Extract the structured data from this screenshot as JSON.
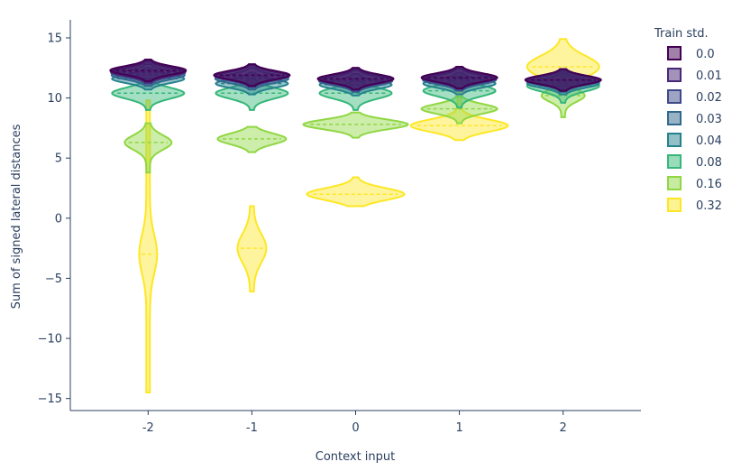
{
  "chart_data": {
    "type": "violin",
    "xlabel": "Context input",
    "ylabel": "Sum of signed lateral distances",
    "categories": [
      "-2",
      "-1",
      "0",
      "1",
      "2"
    ],
    "x_values": [
      -2,
      -1,
      0,
      1,
      2
    ],
    "xlim": [
      -2.75,
      2.75
    ],
    "ylim": [
      -16,
      16.5
    ],
    "y_ticks": [
      -15,
      -10,
      -5,
      0,
      5,
      10,
      15
    ],
    "y_tick_labels": [
      "−15",
      "−10",
      "−5",
      "0",
      "5",
      "10",
      "15"
    ],
    "grid": false,
    "legend": {
      "title": "Train std.",
      "placement": "right"
    },
    "series": [
      {
        "name": "0.0",
        "color": "#440154",
        "medians": [
          12.3,
          11.9,
          11.6,
          11.7,
          11.5
        ]
      },
      {
        "name": "0.01",
        "color": "#482878",
        "medians": [
          12.2,
          11.9,
          11.6,
          11.7,
          11.5
        ]
      },
      {
        "name": "0.02",
        "color": "#3e4989",
        "medians": [
          12.1,
          11.8,
          11.5,
          11.6,
          11.5
        ]
      },
      {
        "name": "0.03",
        "color": "#31688e",
        "medians": [
          11.9,
          11.6,
          11.4,
          11.5,
          11.4
        ]
      },
      {
        "name": "0.04",
        "color": "#26828e",
        "medians": [
          11.6,
          11.2,
          11.1,
          11.2,
          11.2
        ]
      },
      {
        "name": "0.08",
        "color": "#35b779",
        "medians": [
          10.4,
          10.4,
          10.4,
          10.6,
          11.0
        ]
      },
      {
        "name": "0.16",
        "color": "#90d743",
        "medians": [
          6.3,
          6.6,
          7.8,
          9.1,
          10.2
        ]
      },
      {
        "name": "0.32",
        "color": "#fde725",
        "medians": [
          -3.0,
          -2.5,
          2.0,
          7.7,
          12.6
        ]
      }
    ]
  }
}
